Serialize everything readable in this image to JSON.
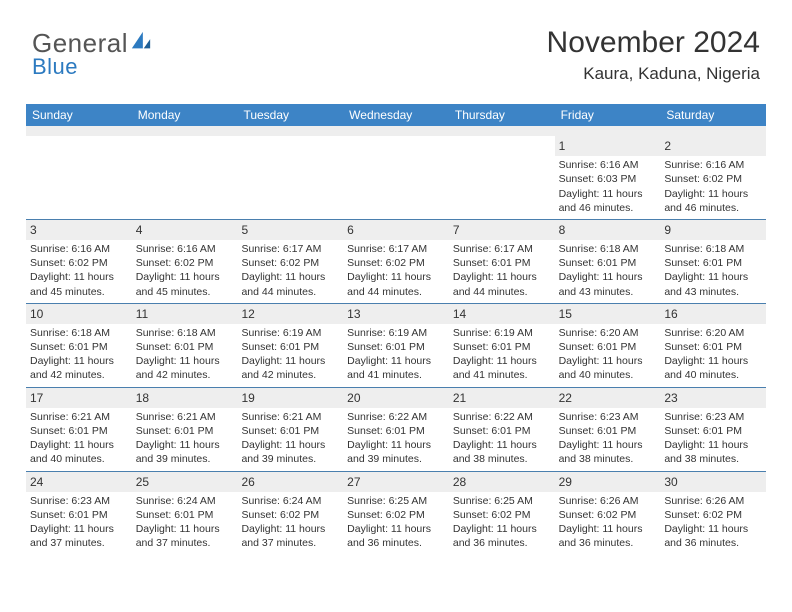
{
  "brand": {
    "word1": "General",
    "word2": "Blue",
    "word1_color": "#6a6a6a",
    "word2_color": "#2c7ac0",
    "icon_color": "#2c7ac0"
  },
  "title": "November 2024",
  "subtitle": "Kaura, Kaduna, Nigeria",
  "colors": {
    "header_bg": "#3d84c6",
    "header_text": "#ffffff",
    "daynum_bg": "#eeeeee",
    "row_border": "#4a7fae",
    "text": "#333333"
  },
  "weekdays": [
    "Sunday",
    "Monday",
    "Tuesday",
    "Wednesday",
    "Thursday",
    "Friday",
    "Saturday"
  ],
  "weeks": [
    [
      {
        "day": "",
        "sunrise": "",
        "sunset": "",
        "daylight": ""
      },
      {
        "day": "",
        "sunrise": "",
        "sunset": "",
        "daylight": ""
      },
      {
        "day": "",
        "sunrise": "",
        "sunset": "",
        "daylight": ""
      },
      {
        "day": "",
        "sunrise": "",
        "sunset": "",
        "daylight": ""
      },
      {
        "day": "",
        "sunrise": "",
        "sunset": "",
        "daylight": ""
      },
      {
        "day": "1",
        "sunrise": "Sunrise: 6:16 AM",
        "sunset": "Sunset: 6:03 PM",
        "daylight": "Daylight: 11 hours and 46 minutes."
      },
      {
        "day": "2",
        "sunrise": "Sunrise: 6:16 AM",
        "sunset": "Sunset: 6:02 PM",
        "daylight": "Daylight: 11 hours and 46 minutes."
      }
    ],
    [
      {
        "day": "3",
        "sunrise": "Sunrise: 6:16 AM",
        "sunset": "Sunset: 6:02 PM",
        "daylight": "Daylight: 11 hours and 45 minutes."
      },
      {
        "day": "4",
        "sunrise": "Sunrise: 6:16 AM",
        "sunset": "Sunset: 6:02 PM",
        "daylight": "Daylight: 11 hours and 45 minutes."
      },
      {
        "day": "5",
        "sunrise": "Sunrise: 6:17 AM",
        "sunset": "Sunset: 6:02 PM",
        "daylight": "Daylight: 11 hours and 44 minutes."
      },
      {
        "day": "6",
        "sunrise": "Sunrise: 6:17 AM",
        "sunset": "Sunset: 6:02 PM",
        "daylight": "Daylight: 11 hours and 44 minutes."
      },
      {
        "day": "7",
        "sunrise": "Sunrise: 6:17 AM",
        "sunset": "Sunset: 6:01 PM",
        "daylight": "Daylight: 11 hours and 44 minutes."
      },
      {
        "day": "8",
        "sunrise": "Sunrise: 6:18 AM",
        "sunset": "Sunset: 6:01 PM",
        "daylight": "Daylight: 11 hours and 43 minutes."
      },
      {
        "day": "9",
        "sunrise": "Sunrise: 6:18 AM",
        "sunset": "Sunset: 6:01 PM",
        "daylight": "Daylight: 11 hours and 43 minutes."
      }
    ],
    [
      {
        "day": "10",
        "sunrise": "Sunrise: 6:18 AM",
        "sunset": "Sunset: 6:01 PM",
        "daylight": "Daylight: 11 hours and 42 minutes."
      },
      {
        "day": "11",
        "sunrise": "Sunrise: 6:18 AM",
        "sunset": "Sunset: 6:01 PM",
        "daylight": "Daylight: 11 hours and 42 minutes."
      },
      {
        "day": "12",
        "sunrise": "Sunrise: 6:19 AM",
        "sunset": "Sunset: 6:01 PM",
        "daylight": "Daylight: 11 hours and 42 minutes."
      },
      {
        "day": "13",
        "sunrise": "Sunrise: 6:19 AM",
        "sunset": "Sunset: 6:01 PM",
        "daylight": "Daylight: 11 hours and 41 minutes."
      },
      {
        "day": "14",
        "sunrise": "Sunrise: 6:19 AM",
        "sunset": "Sunset: 6:01 PM",
        "daylight": "Daylight: 11 hours and 41 minutes."
      },
      {
        "day": "15",
        "sunrise": "Sunrise: 6:20 AM",
        "sunset": "Sunset: 6:01 PM",
        "daylight": "Daylight: 11 hours and 40 minutes."
      },
      {
        "day": "16",
        "sunrise": "Sunrise: 6:20 AM",
        "sunset": "Sunset: 6:01 PM",
        "daylight": "Daylight: 11 hours and 40 minutes."
      }
    ],
    [
      {
        "day": "17",
        "sunrise": "Sunrise: 6:21 AM",
        "sunset": "Sunset: 6:01 PM",
        "daylight": "Daylight: 11 hours and 40 minutes."
      },
      {
        "day": "18",
        "sunrise": "Sunrise: 6:21 AM",
        "sunset": "Sunset: 6:01 PM",
        "daylight": "Daylight: 11 hours and 39 minutes."
      },
      {
        "day": "19",
        "sunrise": "Sunrise: 6:21 AM",
        "sunset": "Sunset: 6:01 PM",
        "daylight": "Daylight: 11 hours and 39 minutes."
      },
      {
        "day": "20",
        "sunrise": "Sunrise: 6:22 AM",
        "sunset": "Sunset: 6:01 PM",
        "daylight": "Daylight: 11 hours and 39 minutes."
      },
      {
        "day": "21",
        "sunrise": "Sunrise: 6:22 AM",
        "sunset": "Sunset: 6:01 PM",
        "daylight": "Daylight: 11 hours and 38 minutes."
      },
      {
        "day": "22",
        "sunrise": "Sunrise: 6:23 AM",
        "sunset": "Sunset: 6:01 PM",
        "daylight": "Daylight: 11 hours and 38 minutes."
      },
      {
        "day": "23",
        "sunrise": "Sunrise: 6:23 AM",
        "sunset": "Sunset: 6:01 PM",
        "daylight": "Daylight: 11 hours and 38 minutes."
      }
    ],
    [
      {
        "day": "24",
        "sunrise": "Sunrise: 6:23 AM",
        "sunset": "Sunset: 6:01 PM",
        "daylight": "Daylight: 11 hours and 37 minutes."
      },
      {
        "day": "25",
        "sunrise": "Sunrise: 6:24 AM",
        "sunset": "Sunset: 6:01 PM",
        "daylight": "Daylight: 11 hours and 37 minutes."
      },
      {
        "day": "26",
        "sunrise": "Sunrise: 6:24 AM",
        "sunset": "Sunset: 6:02 PM",
        "daylight": "Daylight: 11 hours and 37 minutes."
      },
      {
        "day": "27",
        "sunrise": "Sunrise: 6:25 AM",
        "sunset": "Sunset: 6:02 PM",
        "daylight": "Daylight: 11 hours and 36 minutes."
      },
      {
        "day": "28",
        "sunrise": "Sunrise: 6:25 AM",
        "sunset": "Sunset: 6:02 PM",
        "daylight": "Daylight: 11 hours and 36 minutes."
      },
      {
        "day": "29",
        "sunrise": "Sunrise: 6:26 AM",
        "sunset": "Sunset: 6:02 PM",
        "daylight": "Daylight: 11 hours and 36 minutes."
      },
      {
        "day": "30",
        "sunrise": "Sunrise: 6:26 AM",
        "sunset": "Sunset: 6:02 PM",
        "daylight": "Daylight: 11 hours and 36 minutes."
      }
    ]
  ]
}
